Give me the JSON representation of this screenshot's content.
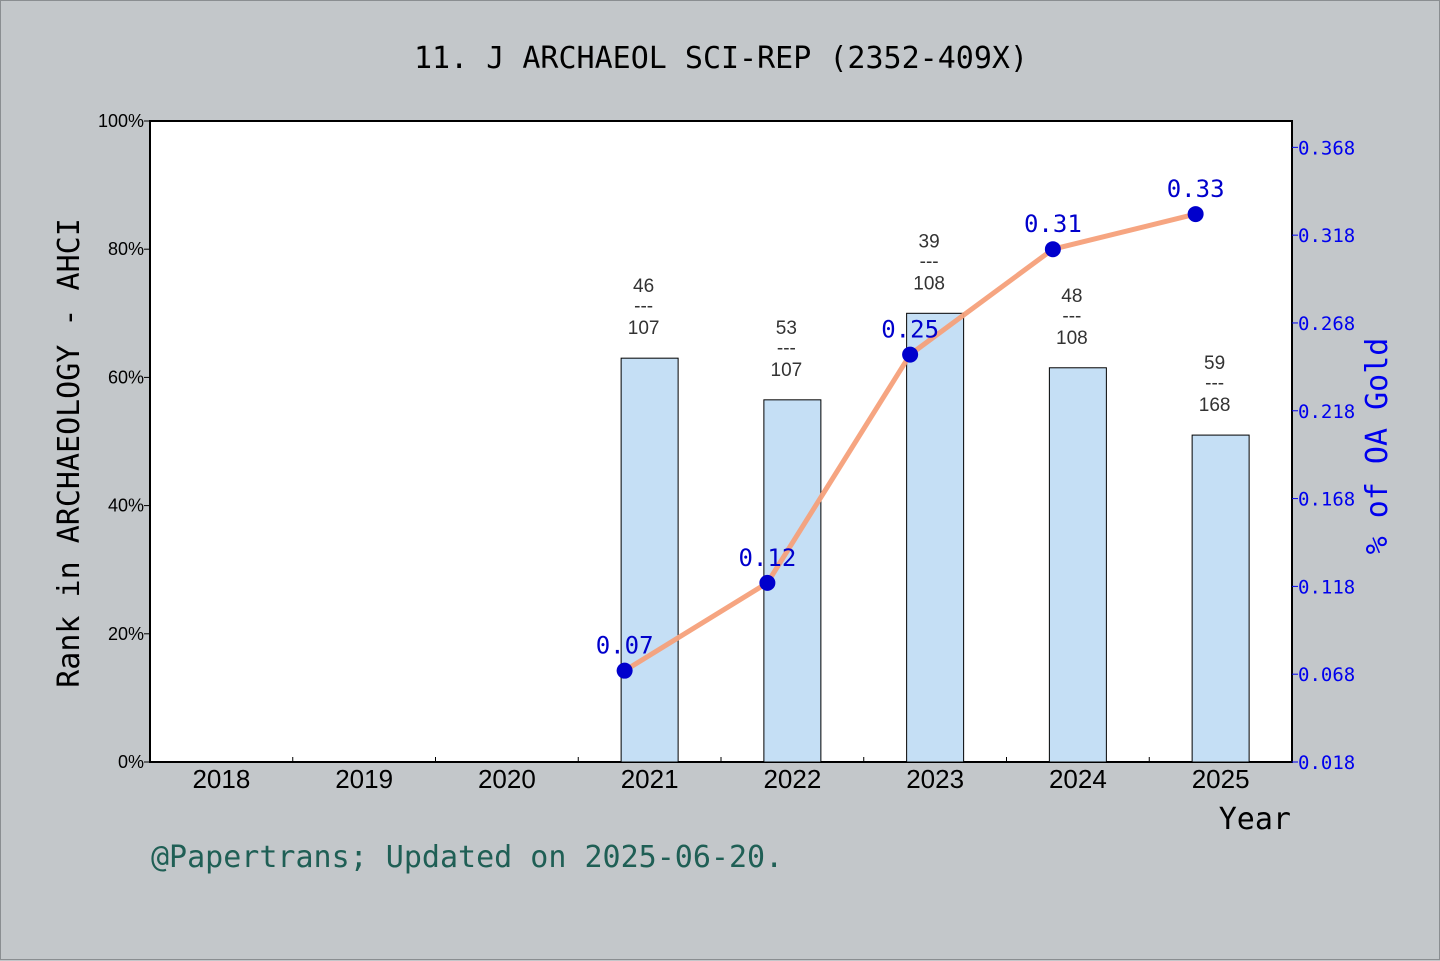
{
  "chart_data": {
    "type": "bar",
    "title": "11. J ARCHAEOL SCI-REP (2352-409X)",
    "xlabel": "Year",
    "ylabel": "Rank in ARCHAEOLOGY - AHCI",
    "y2label": "% of OA Gold",
    "categories": [
      "2018",
      "2019",
      "2020",
      "2021",
      "2022",
      "2023",
      "2024",
      "2025"
    ],
    "y_ticks": [
      "0%",
      "20%",
      "40%",
      "60%",
      "80%",
      "100%"
    ],
    "ylim": [
      0,
      100
    ],
    "y2_ticks": [
      "0.018",
      "0.068",
      "0.118",
      "0.168",
      "0.218",
      "0.268",
      "0.318",
      "0.368"
    ],
    "y2lim": [
      0.018,
      0.383
    ],
    "series": [
      {
        "kind": "bar",
        "values": [
          null,
          null,
          null,
          63,
          56.5,
          70,
          61.5,
          51
        ],
        "labels": [
          null,
          null,
          null,
          {
            "top": "46",
            "sep": "---",
            "bottom": "107"
          },
          {
            "top": "53",
            "sep": "---",
            "bottom": "107"
          },
          {
            "top": "39",
            "sep": "---",
            "bottom": "108"
          },
          {
            "top": "48",
            "sep": "---",
            "bottom": "108"
          },
          {
            "top": "59",
            "sep": "---",
            "bottom": "168"
          }
        ],
        "color": "#c5dff5"
      },
      {
        "kind": "line",
        "axis": "right",
        "values": [
          null,
          null,
          null,
          0.07,
          0.12,
          0.25,
          0.31,
          0.33
        ],
        "labels": [
          null,
          null,
          null,
          "0.07",
          "0.12",
          "0.25",
          "0.31",
          "0.33"
        ],
        "color": "#f5a07a",
        "marker_color": "#0000cc"
      }
    ],
    "grid": false
  },
  "footer": "@Papertrans; Updated on 2025-06-20."
}
